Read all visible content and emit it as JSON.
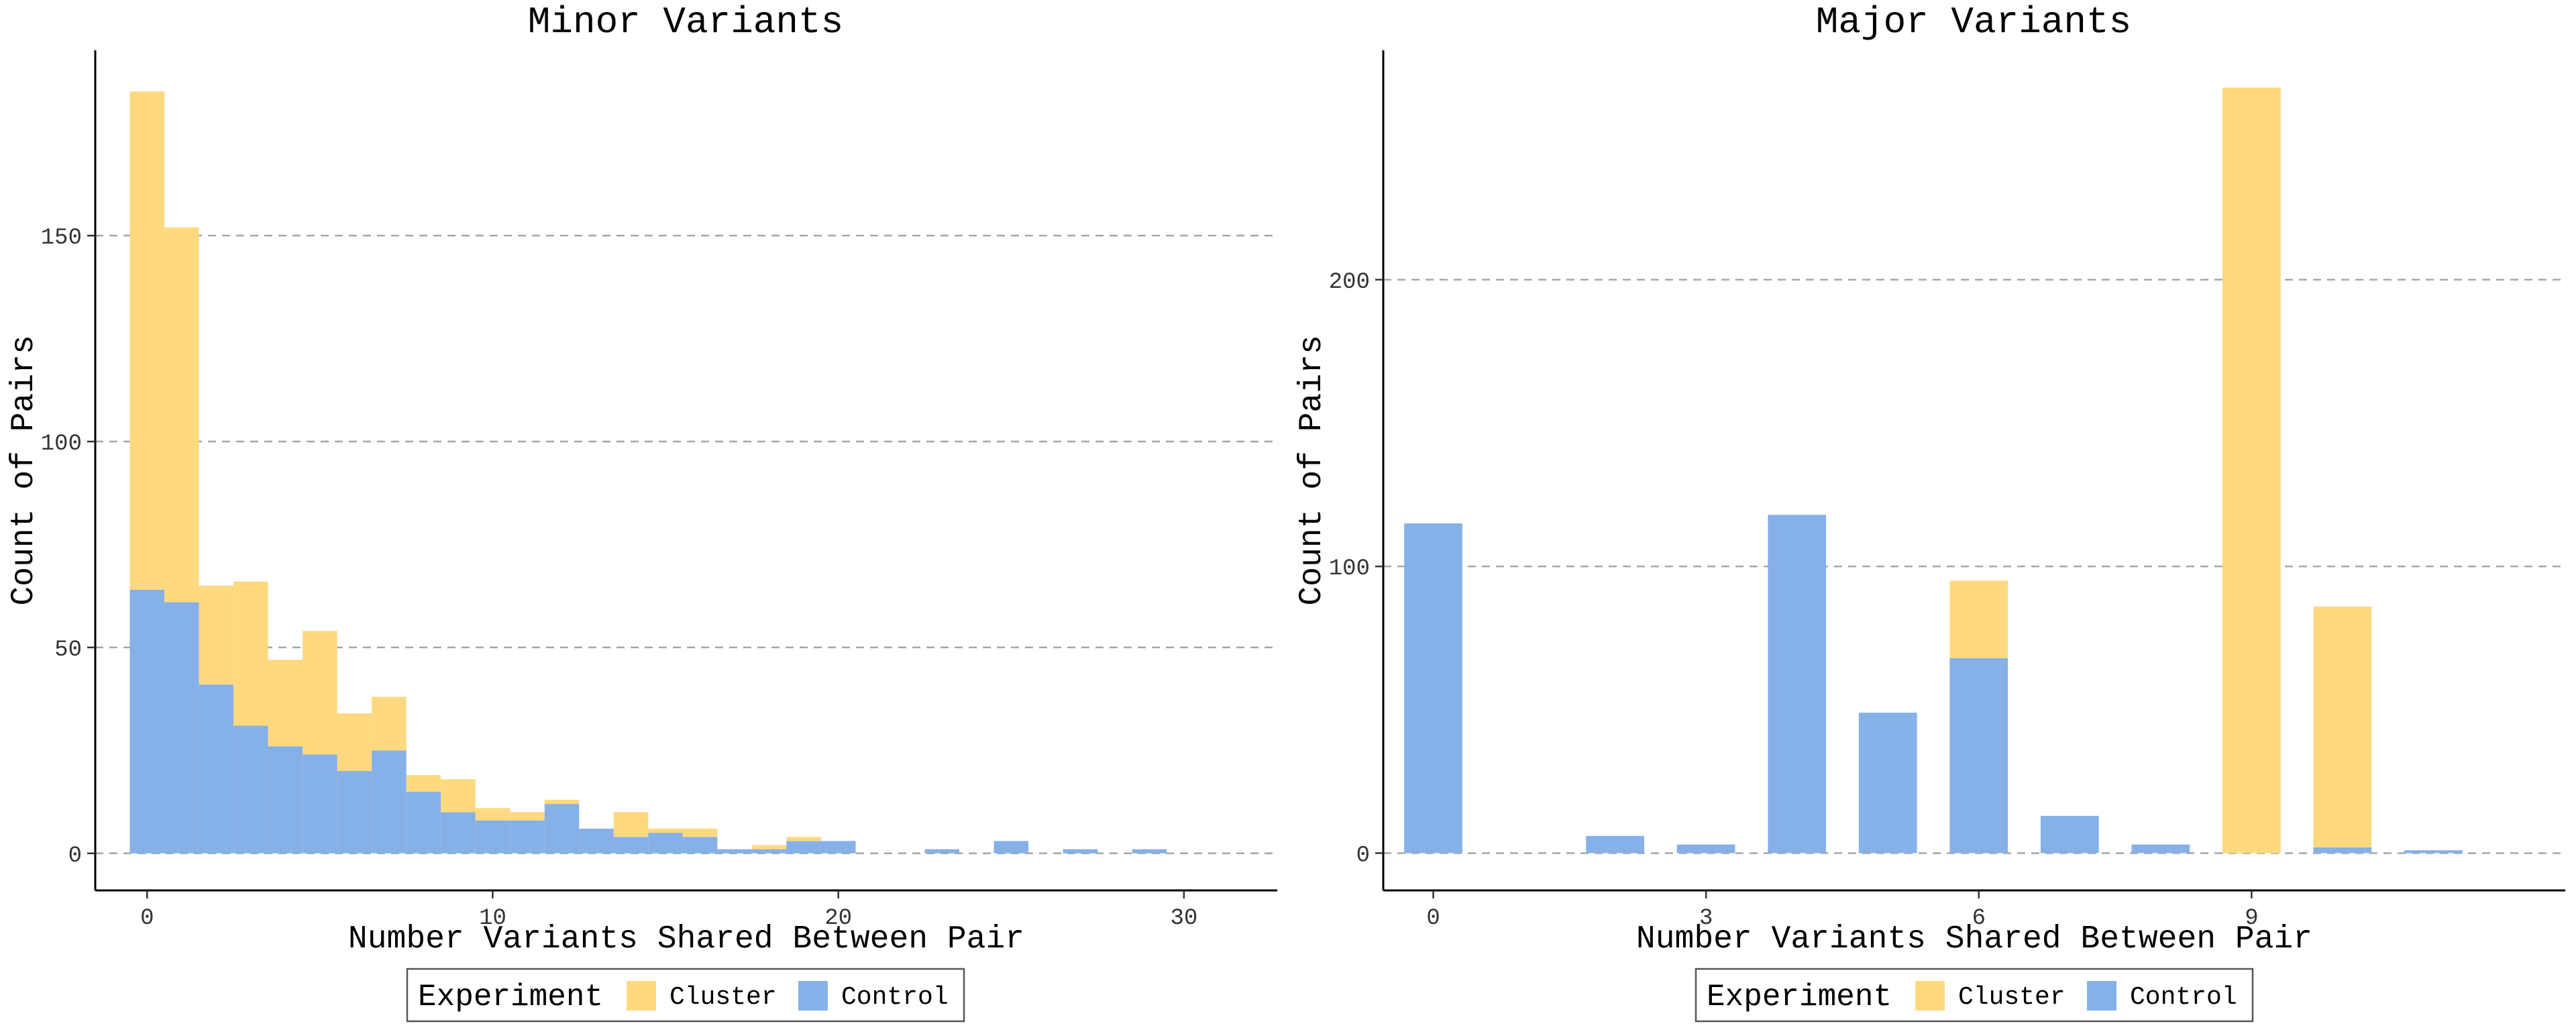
{
  "colors": {
    "cluster": "#ffd97f",
    "control": "#86b0e8"
  },
  "legend": {
    "title": "Experiment",
    "entries": [
      {
        "label": "Cluster",
        "key": "cluster"
      },
      {
        "label": "Control",
        "key": "control"
      }
    ]
  },
  "chart_data": [
    {
      "type": "bar",
      "stacked": true,
      "title": "Minor Variants",
      "xlabel": "Number Variants Shared Between Pair",
      "ylabel": "Count of Pairs",
      "xlim": [
        -1.5,
        32.7
      ],
      "ylim": [
        -9,
        195
      ],
      "xticks": [
        0,
        10,
        20,
        30
      ],
      "yticks": [
        0,
        50,
        100,
        150
      ],
      "grid": "horizontal-dashed",
      "legend_position": "bottom",
      "x": [
        0,
        1,
        2,
        3,
        4,
        5,
        6,
        7,
        8,
        9,
        10,
        11,
        12,
        13,
        14,
        15,
        16,
        17,
        18,
        19,
        20,
        21,
        22,
        23,
        24,
        25,
        26,
        27,
        28,
        29,
        30,
        31
      ],
      "series": [
        {
          "name": "Control",
          "key": "control",
          "values": [
            64,
            61,
            41,
            31,
            26,
            24,
            20,
            25,
            15,
            10,
            8,
            8,
            12,
            6,
            4,
            5,
            4,
            1,
            1,
            3,
            3,
            0,
            0,
            1,
            0,
            3,
            0,
            1,
            0,
            1,
            0,
            0
          ]
        },
        {
          "name": "Cluster",
          "key": "cluster",
          "values": [
            121,
            91,
            24,
            35,
            21,
            30,
            14,
            13,
            4,
            8,
            3,
            2,
            1,
            0,
            6,
            1,
            2,
            0,
            1,
            1,
            0,
            0,
            0,
            0,
            0,
            0,
            0,
            0,
            0,
            0,
            0,
            0
          ]
        }
      ]
    },
    {
      "type": "bar",
      "stacked": true,
      "title": "Major Variants",
      "xlabel": "Number Variants Shared Between Pair",
      "ylabel": "Count of Pairs",
      "xlim": [
        -0.55,
        12.45
      ],
      "ylim": [
        -13,
        280
      ],
      "xticks": [
        0,
        3,
        6,
        9
      ],
      "yticks": [
        0,
        100,
        200
      ],
      "grid": "horizontal-dashed",
      "legend_position": "bottom",
      "x": [
        0,
        1,
        2,
        3,
        4,
        5,
        6,
        7,
        8,
        9,
        10,
        11
      ],
      "series": [
        {
          "name": "Control",
          "key": "control",
          "values": [
            115,
            0,
            6,
            3,
            118,
            49,
            68,
            13,
            3,
            0,
            2,
            1
          ]
        },
        {
          "name": "Cluster",
          "key": "cluster",
          "values": [
            0,
            0,
            0,
            0,
            0,
            0,
            27,
            0,
            0,
            267,
            84,
            0
          ]
        }
      ]
    }
  ]
}
